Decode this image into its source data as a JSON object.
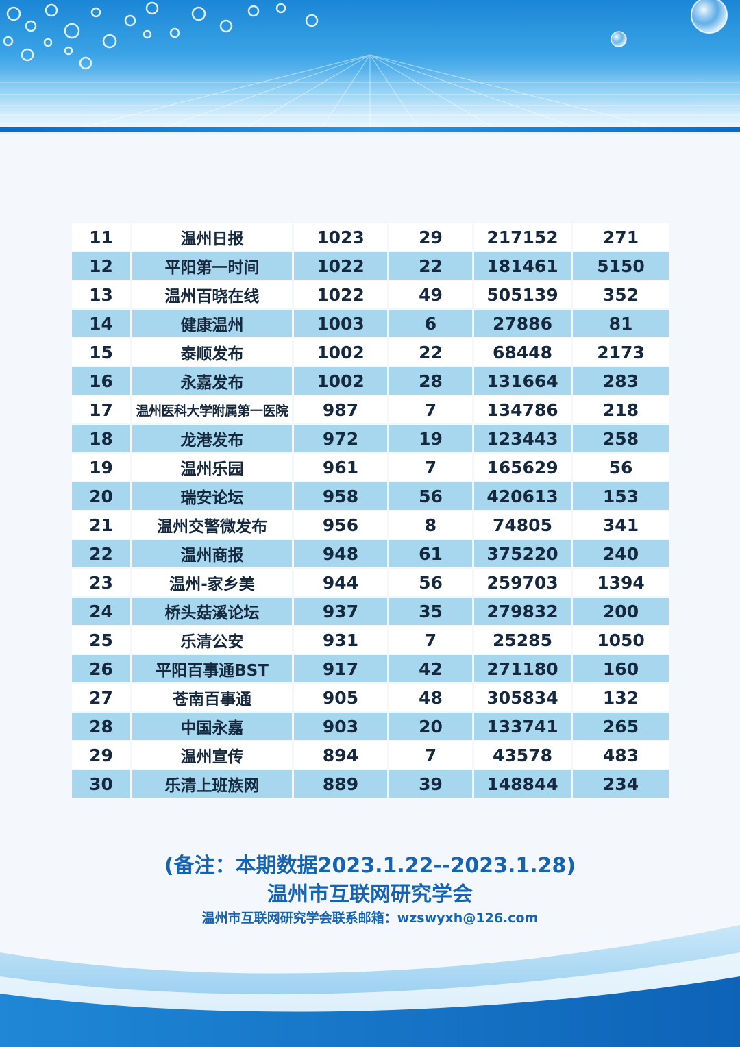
{
  "rows": [
    {
      "rank": "11",
      "name": "温州日报",
      "c1": "1023",
      "c2": "29",
      "c3": "217152",
      "c4": "271"
    },
    {
      "rank": "12",
      "name": "平阳第一时间",
      "c1": "1022",
      "c2": "22",
      "c3": "181461",
      "c4": "5150"
    },
    {
      "rank": "13",
      "name": "温州百晓在线",
      "c1": "1022",
      "c2": "49",
      "c3": "505139",
      "c4": "352"
    },
    {
      "rank": "14",
      "name": "健康温州",
      "c1": "1003",
      "c2": "6",
      "c3": "27886",
      "c4": "81"
    },
    {
      "rank": "15",
      "name": "泰顺发布",
      "c1": "1002",
      "c2": "22",
      "c3": "68448",
      "c4": "2173"
    },
    {
      "rank": "16",
      "name": "永嘉发布",
      "c1": "1002",
      "c2": "28",
      "c3": "131664",
      "c4": "283"
    },
    {
      "rank": "17",
      "name": "温州医科大学附属第一医院",
      "c1": "987",
      "c2": "7",
      "c3": "134786",
      "c4": "218"
    },
    {
      "rank": "18",
      "name": "龙港发布",
      "c1": "972",
      "c2": "19",
      "c3": "123443",
      "c4": "258"
    },
    {
      "rank": "19",
      "name": "温州乐园",
      "c1": "961",
      "c2": "7",
      "c3": "165629",
      "c4": "56"
    },
    {
      "rank": "20",
      "name": "瑞安论坛",
      "c1": "958",
      "c2": "56",
      "c3": "420613",
      "c4": "153"
    },
    {
      "rank": "21",
      "name": "温州交警微发布",
      "c1": "956",
      "c2": "8",
      "c3": "74805",
      "c4": "341"
    },
    {
      "rank": "22",
      "name": "温州商报",
      "c1": "948",
      "c2": "61",
      "c3": "375220",
      "c4": "240"
    },
    {
      "rank": "23",
      "name": "温州-家乡美",
      "c1": "944",
      "c2": "56",
      "c3": "259703",
      "c4": "1394"
    },
    {
      "rank": "24",
      "name": "桥头菇溪论坛",
      "c1": "937",
      "c2": "35",
      "c3": "279832",
      "c4": "200"
    },
    {
      "rank": "25",
      "name": "乐清公安",
      "c1": "931",
      "c2": "7",
      "c3": "25285",
      "c4": "1050"
    },
    {
      "rank": "26",
      "name": "平阳百事通BST",
      "c1": "917",
      "c2": "42",
      "c3": "271180",
      "c4": "160"
    },
    {
      "rank": "27",
      "name": "苍南百事通",
      "c1": "905",
      "c2": "48",
      "c3": "305834",
      "c4": "132"
    },
    {
      "rank": "28",
      "name": "中国永嘉",
      "c1": "903",
      "c2": "20",
      "c3": "133741",
      "c4": "265"
    },
    {
      "rank": "29",
      "name": "温州宣传",
      "c1": "894",
      "c2": "7",
      "c3": "43578",
      "c4": "483"
    },
    {
      "rank": "30",
      "name": "乐清上班族网",
      "c1": "889",
      "c2": "39",
      "c3": "148844",
      "c4": "234"
    }
  ],
  "footer": {
    "note": "(备注：本期数据2023.1.22--2023.1.28)",
    "org": "温州市互联网研究学会",
    "contact": "温州市互联网研究学会联系邮箱：wzswyxh@126.com"
  },
  "colors": {
    "row_alt": "#a7d7ef",
    "row": "#ffffff",
    "text": "#16283d",
    "footer_text": "#1563b3",
    "banner": "#1b86d6"
  }
}
